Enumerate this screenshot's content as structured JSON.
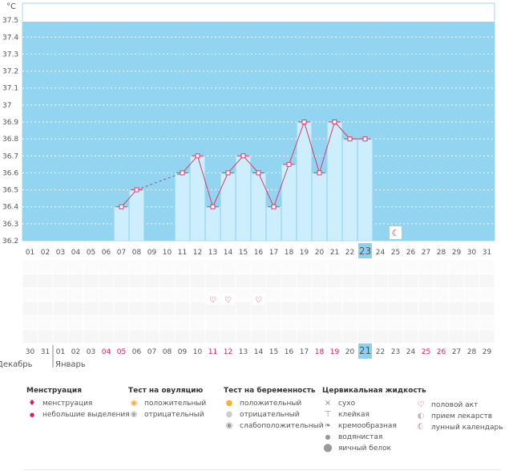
{
  "chart_data": {
    "type": "bar+line",
    "title": "",
    "ylabel": "°C",
    "ylim": [
      36.2,
      37.6
    ],
    "y_ticks": [
      "36.2",
      "36.3",
      "36.4",
      "36.5",
      "36.6",
      "36.7",
      "36.8",
      "36.9",
      "37",
      "37.1",
      "37.2",
      "37.3",
      "37.4",
      "37.5"
    ],
    "cycle_days": [
      "01",
      "02",
      "03",
      "04",
      "05",
      "06",
      "07",
      "08",
      "09",
      "10",
      "11",
      "12",
      "13",
      "14",
      "15",
      "16",
      "17",
      "18",
      "19",
      "20",
      "21",
      "22",
      "23",
      "24",
      "25",
      "26",
      "27",
      "28",
      "29",
      "30",
      "31"
    ],
    "values": [
      null,
      null,
      null,
      null,
      null,
      null,
      36.4,
      36.5,
      null,
      null,
      36.6,
      36.7,
      36.4,
      36.6,
      36.7,
      36.6,
      36.4,
      36.65,
      36.9,
      36.6,
      36.9,
      36.8,
      36.8,
      null,
      null,
      null,
      null,
      null,
      null,
      null,
      null
    ],
    "dashed_segment": [
      8,
      11
    ],
    "highlight_day_index": 22,
    "lunar_marker_day_index": 24,
    "intercourse_day_indices": [
      12,
      13,
      15
    ],
    "calendar_days": [
      "30",
      "31",
      "01",
      "02",
      "03",
      "04",
      "05",
      "06",
      "07",
      "08",
      "09",
      "10",
      "11",
      "12",
      "13",
      "14",
      "15",
      "16",
      "17",
      "18",
      "19",
      "20",
      "21",
      "22",
      "23",
      "24",
      "25",
      "26",
      "27",
      "28",
      "29"
    ],
    "weekend_day_indices": [
      5,
      6,
      12,
      13,
      19,
      20,
      26,
      27
    ],
    "month_labels": [
      "Декабрь",
      "Январь"
    ],
    "colors": {
      "plot_bg": "#93d5f0",
      "bar_fill": "#cdeefc",
      "bar_edge": "#a9dff5",
      "line": "#d63a6e",
      "highlight": "#8fd0ee",
      "weekend_text": "#e0175a",
      "grid_dot": "#ffffff"
    }
  },
  "legend": {
    "menstruation": {
      "title": "Менструация",
      "items": [
        "менструация",
        "небольшие выделения"
      ]
    },
    "ovulation_test": {
      "title": "Тест на овуляцию",
      "items": [
        "положительный",
        "отрицательный"
      ]
    },
    "pregnancy_test": {
      "title": "Тест на беременность",
      "items": [
        "положительный",
        "отрицательный",
        "слабоположительный"
      ]
    },
    "cervical_fluid": {
      "title": "Цервикальная жидкость",
      "items": [
        "сухо",
        "клейкая",
        "кремообразная",
        "водянистая",
        "яичный белок"
      ]
    },
    "other": {
      "items": [
        "половой акт",
        "прием лекарств",
        "лунный календарь"
      ]
    }
  }
}
